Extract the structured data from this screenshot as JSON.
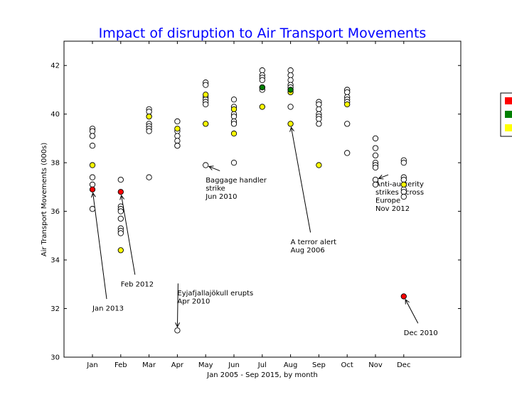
{
  "chart_data": {
    "type": "scatter",
    "title": "Impact of disruption to Air Transport Movements",
    "xlabel": "Jan 2005 - Sep 2015, by month",
    "ylabel": "Air Transport Movements (000s)",
    "categories": [
      "Jan",
      "Feb",
      "Mar",
      "Apr",
      "May",
      "Jun",
      "Jul",
      "Aug",
      "Sep",
      "Oct",
      "Nov",
      "Dec"
    ],
    "ylim": [
      30,
      43
    ],
    "yticks": [
      30,
      32,
      34,
      36,
      38,
      40,
      42
    ],
    "legend_position": "right",
    "colors": {
      "normal": "#ffffff",
      "red": "#ff0000",
      "green": "#008000",
      "yellow": "#ffff00",
      "title": "#0000ff"
    },
    "series": [
      {
        "color": "normal",
        "points": [
          [
            1,
            39.4
          ],
          [
            1,
            39.3
          ],
          [
            1,
            39.1
          ],
          [
            1,
            39.1
          ],
          [
            1,
            38.7
          ],
          [
            1,
            37.4
          ],
          [
            1,
            37.1
          ],
          [
            1,
            36.1
          ],
          [
            2,
            37.3
          ],
          [
            2,
            36.2
          ],
          [
            2,
            36.1
          ],
          [
            2,
            36.0
          ],
          [
            2,
            35.7
          ],
          [
            2,
            35.3
          ],
          [
            2,
            35.2
          ],
          [
            2,
            35.1
          ],
          [
            3,
            40.2
          ],
          [
            3,
            40.1
          ],
          [
            3,
            39.9
          ],
          [
            3,
            39.6
          ],
          [
            3,
            39.5
          ],
          [
            3,
            39.4
          ],
          [
            3,
            39.3
          ],
          [
            3,
            37.4
          ],
          [
            4,
            39.7
          ],
          [
            4,
            39.3
          ],
          [
            4,
            39.1
          ],
          [
            4,
            38.9
          ],
          [
            4,
            38.7
          ],
          [
            4,
            38.7
          ],
          [
            4,
            31.1
          ],
          [
            5,
            41.3
          ],
          [
            5,
            41.2
          ],
          [
            5,
            40.7
          ],
          [
            5,
            40.6
          ],
          [
            5,
            40.5
          ],
          [
            5,
            40.4
          ],
          [
            5,
            37.9
          ],
          [
            6,
            40.6
          ],
          [
            6,
            40.3
          ],
          [
            6,
            40.0
          ],
          [
            6,
            39.9
          ],
          [
            6,
            39.7
          ],
          [
            6,
            39.6
          ],
          [
            6,
            38.0
          ],
          [
            7,
            41.8
          ],
          [
            7,
            41.6
          ],
          [
            7,
            41.5
          ],
          [
            7,
            41.4
          ],
          [
            7,
            41.1
          ],
          [
            7,
            41.0
          ],
          [
            8,
            41.8
          ],
          [
            8,
            41.6
          ],
          [
            8,
            41.4
          ],
          [
            8,
            41.2
          ],
          [
            8,
            41.1
          ],
          [
            8,
            40.3
          ],
          [
            9,
            40.5
          ],
          [
            9,
            40.4
          ],
          [
            9,
            40.2
          ],
          [
            9,
            40.0
          ],
          [
            9,
            39.9
          ],
          [
            9,
            39.8
          ],
          [
            9,
            39.6
          ],
          [
            10,
            41.0
          ],
          [
            10,
            40.9
          ],
          [
            10,
            40.7
          ],
          [
            10,
            40.6
          ],
          [
            10,
            40.5
          ],
          [
            10,
            39.6
          ],
          [
            10,
            38.4
          ],
          [
            11,
            39.0
          ],
          [
            11,
            38.6
          ],
          [
            11,
            38.3
          ],
          [
            11,
            38.0
          ],
          [
            11,
            37.9
          ],
          [
            11,
            37.8
          ],
          [
            11,
            37.3
          ],
          [
            11,
            37.1
          ],
          [
            12,
            38.1
          ],
          [
            12,
            38.0
          ],
          [
            12,
            37.4
          ],
          [
            12,
            37.3
          ],
          [
            12,
            36.9
          ],
          [
            12,
            36.8
          ],
          [
            12,
            36.6
          ]
        ]
      },
      {
        "color": "yellow",
        "points": [
          [
            1,
            37.9
          ],
          [
            2,
            34.4
          ],
          [
            3,
            39.9
          ],
          [
            4,
            39.4
          ],
          [
            5,
            40.8
          ],
          [
            5,
            39.6
          ],
          [
            6,
            40.2
          ],
          [
            6,
            39.2
          ],
          [
            7,
            40.3
          ],
          [
            8,
            40.9
          ],
          [
            8,
            39.6
          ],
          [
            9,
            37.9
          ],
          [
            10,
            40.4
          ],
          [
            12,
            37.1
          ]
        ]
      },
      {
        "color": "green",
        "points": [
          [
            7,
            41.1
          ],
          [
            8,
            41.0
          ]
        ]
      },
      {
        "color": "red",
        "points": [
          [
            1,
            36.9
          ],
          [
            2,
            36.8
          ],
          [
            12,
            32.5
          ]
        ]
      }
    ],
    "annotations": [
      {
        "lines": [
          "Jan 2013"
        ],
        "point": [
          1,
          36.9
        ],
        "text_at": [
          1,
          32.0
        ]
      },
      {
        "lines": [
          "Feb 2012"
        ],
        "point": [
          2,
          36.8
        ],
        "text_at": [
          2,
          33.0
        ]
      },
      {
        "lines": [
          "Eyjafjallajökull erupts",
          "Apr 2010"
        ],
        "point": [
          4,
          31.1
        ],
        "text_at": [
          4,
          32.3
        ]
      },
      {
        "lines": [
          "Baggage handler",
          "strike",
          "Jun 2010"
        ],
        "point": [
          5,
          37.9
        ],
        "text_at": [
          5,
          36.6
        ]
      },
      {
        "lines": [
          "A terror alert",
          "Aug 2006"
        ],
        "point": [
          8,
          39.6
        ],
        "text_at": [
          8,
          34.4
        ]
      },
      {
        "lines": [
          "Anti-austerity",
          "strikes across",
          "Europe",
          "Nov 2012"
        ],
        "point": [
          11,
          37.3
        ],
        "text_at": [
          11,
          36.1
        ]
      },
      {
        "lines": [
          "Dec 2010"
        ],
        "point": [
          12,
          32.5
        ],
        "text_at": [
          12,
          31.0
        ]
      }
    ]
  }
}
